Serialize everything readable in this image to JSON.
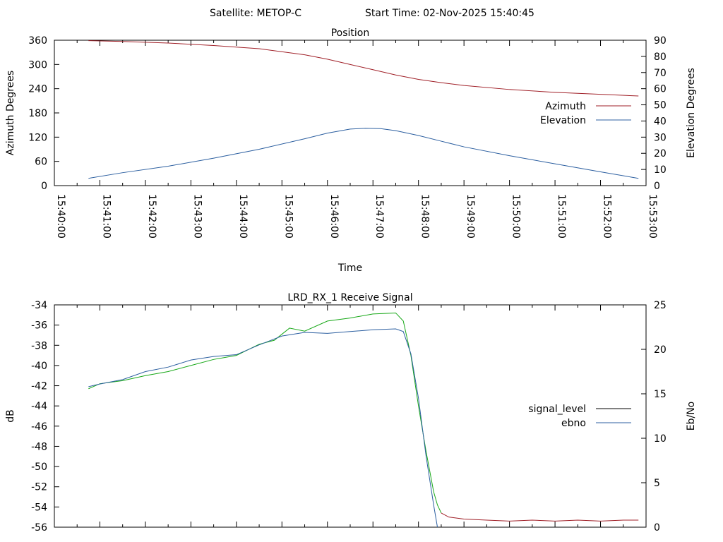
{
  "header": {
    "satellite": "Satellite: METOP-C",
    "start_time": "Start Time: 02-Nov-2025 15:40:45"
  },
  "colors": {
    "azimuth": "#a02028",
    "elevation": "#2c5fa0",
    "signal_level": "#000000",
    "ebno": "#2c5fa0",
    "signal_before_loss": "#18a818",
    "signal_after_loss": "#a02028",
    "axis": "#000000"
  },
  "chart_data": [
    {
      "type": "line",
      "title": "Position",
      "xlabel": "Time",
      "ylabel": "Azimuth Degrees",
      "y2label": "Elevation Degrees",
      "xlim": [
        "15:40:00",
        "15:53:00"
      ],
      "ylim": [
        0,
        360
      ],
      "y2lim": [
        0,
        90
      ],
      "x_ticks": [
        "15:40:00",
        "15:41:00",
        "15:42:00",
        "15:43:00",
        "15:44:00",
        "15:45:00",
        "15:46:00",
        "15:47:00",
        "15:48:00",
        "15:49:00",
        "15:50:00",
        "15:51:00",
        "15:52:00",
        "15:53:00"
      ],
      "y_ticks": [
        0,
        60,
        120,
        180,
        240,
        300,
        360
      ],
      "y2_ticks": [
        0,
        10,
        20,
        30,
        40,
        50,
        60,
        70,
        80,
        90
      ],
      "legend_position": "right",
      "grid": false,
      "series": [
        {
          "name": "Azimuth",
          "axis": "y",
          "x": [
            "15:40:45",
            "15:41:30",
            "15:42:30",
            "15:43:30",
            "15:44:30",
            "15:45:30",
            "15:46:00",
            "15:46:30",
            "15:47:00",
            "15:47:30",
            "15:48:00",
            "15:48:30",
            "15:49:00",
            "15:50:00",
            "15:51:00",
            "15:52:00",
            "15:52:50"
          ],
          "values": [
            359,
            357,
            353,
            347,
            339,
            324,
            313,
            300,
            287,
            274,
            263,
            255,
            248,
            238,
            231,
            226,
            222
          ]
        },
        {
          "name": "Elevation",
          "axis": "y2",
          "x": [
            "15:40:45",
            "15:41:30",
            "15:42:30",
            "15:43:30",
            "15:44:30",
            "15:45:30",
            "15:46:00",
            "15:46:30",
            "15:46:50",
            "15:47:10",
            "15:47:30",
            "15:48:00",
            "15:48:30",
            "15:49:00",
            "15:50:00",
            "15:51:00",
            "15:52:00",
            "15:52:50"
          ],
          "values": [
            4.5,
            8,
            12,
            17,
            22.5,
            29,
            32.5,
            35,
            35.5,
            35.3,
            34,
            31,
            27.5,
            24,
            18.5,
            13.5,
            8.5,
            4.5
          ]
        }
      ]
    },
    {
      "type": "line",
      "title": "LRD_RX_1 Receive Signal",
      "ylabel": "dB",
      "y2label": "Eb/No",
      "xlim": [
        "15:40:00",
        "15:53:00"
      ],
      "ylim": [
        -56,
        -34
      ],
      "y2lim": [
        0,
        25
      ],
      "y_ticks": [
        -56,
        -54,
        -52,
        -50,
        -48,
        -46,
        -44,
        -42,
        -40,
        -38,
        -36,
        -34
      ],
      "y2_ticks": [
        0,
        5,
        10,
        15,
        20,
        25
      ],
      "legend_position": "right",
      "grid": false,
      "series": [
        {
          "name": "signal_level",
          "axis": "y",
          "x": [
            "15:40:45",
            "15:41:00",
            "15:41:30",
            "15:42:00",
            "15:42:30",
            "15:43:00",
            "15:43:30",
            "15:44:00",
            "15:44:30",
            "15:44:50",
            "15:45:10",
            "15:45:30",
            "15:46:00",
            "15:46:30",
            "15:47:00",
            "15:47:30",
            "15:47:40",
            "15:47:50",
            "15:48:00",
            "15:48:10",
            "15:48:20",
            "15:48:25",
            "15:48:30",
            "15:48:40",
            "15:49:00",
            "15:49:30",
            "15:50:00",
            "15:50:30",
            "15:51:00",
            "15:51:30",
            "15:52:00",
            "15:52:30",
            "15:52:50"
          ],
          "values": [
            -42.3,
            -41.8,
            -41.5,
            -41.0,
            -40.6,
            -40.0,
            -39.4,
            -39.0,
            -37.9,
            -37.5,
            -36.3,
            -36.6,
            -35.6,
            -35.3,
            -34.9,
            -34.8,
            -35.6,
            -39.0,
            -44.0,
            -48.5,
            -52.5,
            -53.8,
            -54.6,
            -55.0,
            -55.2,
            -55.3,
            -55.4,
            -55.3,
            -55.4,
            -55.3,
            -55.4,
            -55.3,
            -55.3
          ]
        },
        {
          "name": "ebno",
          "axis": "y2",
          "x": [
            "15:40:45",
            "15:41:00",
            "15:41:30",
            "15:42:00",
            "15:42:30",
            "15:43:00",
            "15:43:30",
            "15:44:00",
            "15:44:30",
            "15:45:00",
            "15:45:30",
            "15:46:00",
            "15:46:30",
            "15:47:00",
            "15:47:30",
            "15:47:40",
            "15:47:50",
            "15:48:00",
            "15:48:10",
            "15:48:20",
            "15:48:25"
          ],
          "values": [
            15.8,
            16.1,
            16.6,
            17.5,
            18.0,
            18.8,
            19.2,
            19.4,
            20.5,
            21.5,
            21.9,
            21.8,
            22.0,
            22.2,
            22.3,
            22.0,
            19.5,
            14.5,
            8.0,
            2.5,
            0
          ]
        }
      ]
    }
  ]
}
